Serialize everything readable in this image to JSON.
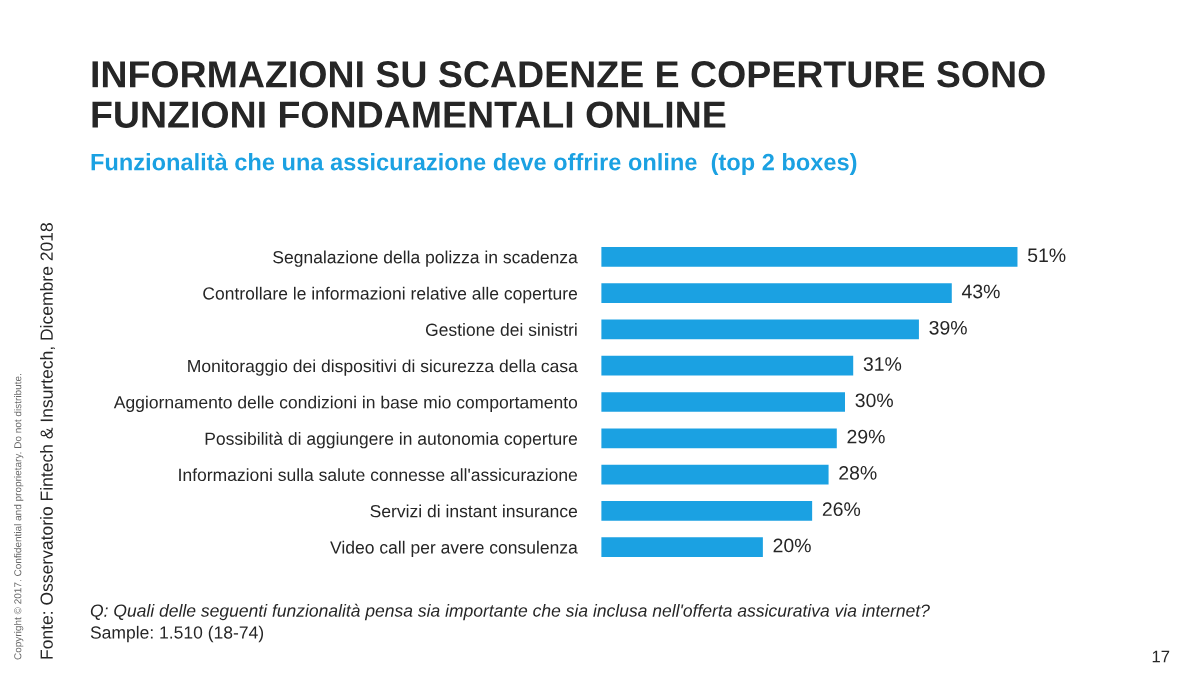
{
  "chart_data": {
    "type": "bar",
    "orientation": "horizontal",
    "title": "INFORMAZIONI SU SCADENZE E COPERTURE SONO FUNZIONI FONDAMENTALI ONLINE",
    "subtitle": "Funzionalità che una assicurazione deve offrire online  (top 2 boxes)",
    "categories": [
      "Segnalazione della polizza in scadenza",
      "Controllare le informazioni relative alle coperture",
      "Gestione dei sinistri",
      "Monitoraggio dei dispositivi di sicurezza della casa",
      "Aggiornamento delle condizioni in base mio comportamento",
      "Possibilità di aggiungere in autonomia coperture",
      "Informazioni sulla salute connesse all'assicurazione",
      "Servizi di instant insurance",
      "Video call per avere consulenza"
    ],
    "values": [
      51,
      43,
      39,
      31,
      30,
      29,
      28,
      26,
      20
    ],
    "value_labels": [
      "51%",
      "43%",
      "39%",
      "31%",
      "30%",
      "29%",
      "28%",
      "26%",
      "20%"
    ],
    "color": "#1ba1e2",
    "annotations": [
      "Q: Quali delle seguenti funzionalità pensa sia importante che sia inclusa nell'offerta assicurativa via internet?",
      "Sample: 1.510 (18-74)",
      "17",
      "Fonte: Osservatorio Fintech & Insurtech, Dicembre 2018",
      "Copyright © 2017. Confidential and proprietary. Do not distribute."
    ],
    "grid": false,
    "legend": false
  }
}
